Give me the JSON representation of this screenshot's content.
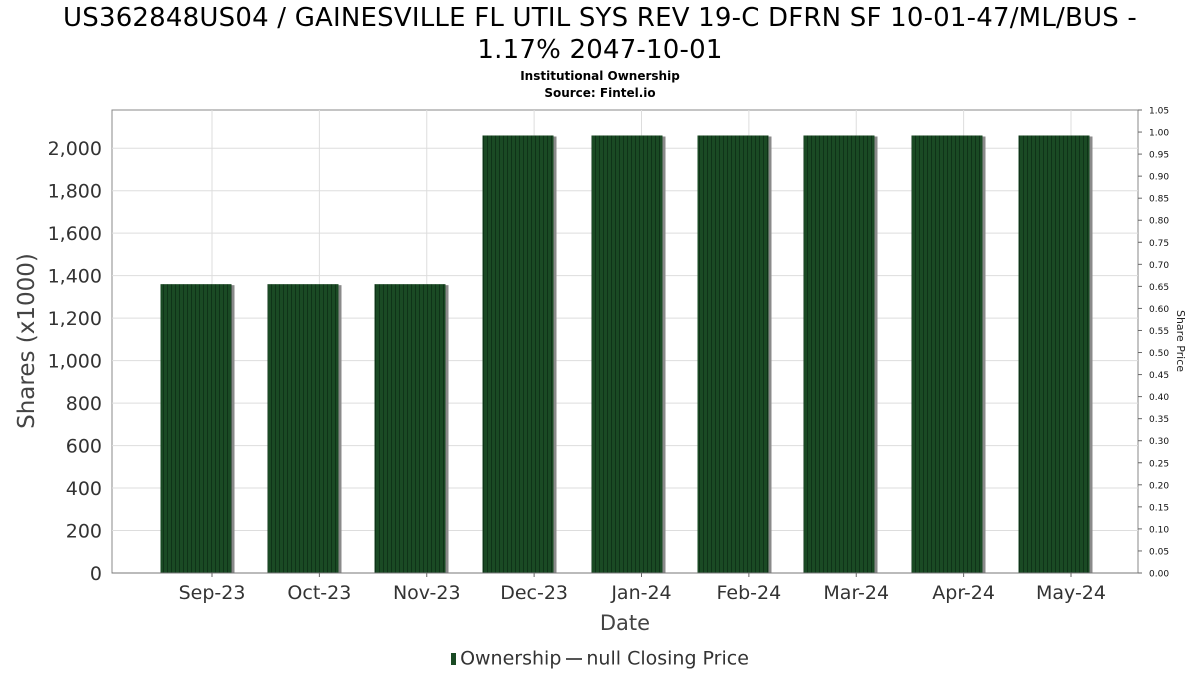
{
  "chart_data": {
    "type": "bar",
    "title_line1": "US362848US04 / GAINESVILLE FL UTIL SYS REV 19-C DFRN SF 10-01-47/ML/BUS -",
    "title_line2": "1.17% 2047-10-01",
    "subtitle": "Institutional Ownership",
    "source": "Source: Fintel.io",
    "xlabel": "Date",
    "ylabel": "Shares (x1000)",
    "y2label": "Share Price",
    "categories": [
      "Sep-23",
      "Oct-23",
      "Nov-23",
      "Dec-23",
      "Jan-24",
      "Feb-24",
      "Mar-24",
      "Apr-24",
      "May-24"
    ],
    "series": [
      {
        "name": "Ownership",
        "values": [
          1360,
          1360,
          1360,
          2060,
          2060,
          2060,
          2060,
          2060,
          2060
        ]
      }
    ],
    "ylim": [
      0,
      2180
    ],
    "yticks": [
      "0",
      "200",
      "400",
      "600",
      "800",
      "1,000",
      "1,200",
      "1,400",
      "1,600",
      "1,800",
      "2,000"
    ],
    "y2lim": [
      0,
      1.05
    ],
    "y2ticks": [
      "0.00",
      "0.05",
      "0.10",
      "0.15",
      "0.20",
      "0.25",
      "0.30",
      "0.35",
      "0.40",
      "0.45",
      "0.50",
      "0.55",
      "0.60",
      "0.65",
      "0.70",
      "0.75",
      "0.80",
      "0.85",
      "0.90",
      "0.95",
      "1.00",
      "1.05"
    ],
    "grid": true,
    "legend_position": "bottom-center",
    "legend": {
      "bar_label": "Ownership",
      "line_label": "null Closing Price"
    },
    "colors": {
      "bar": "#1a4a24",
      "bar_stripe": "#0f3318",
      "bar_shadow": "#8a8a8a",
      "grid": "#dddddd"
    }
  }
}
